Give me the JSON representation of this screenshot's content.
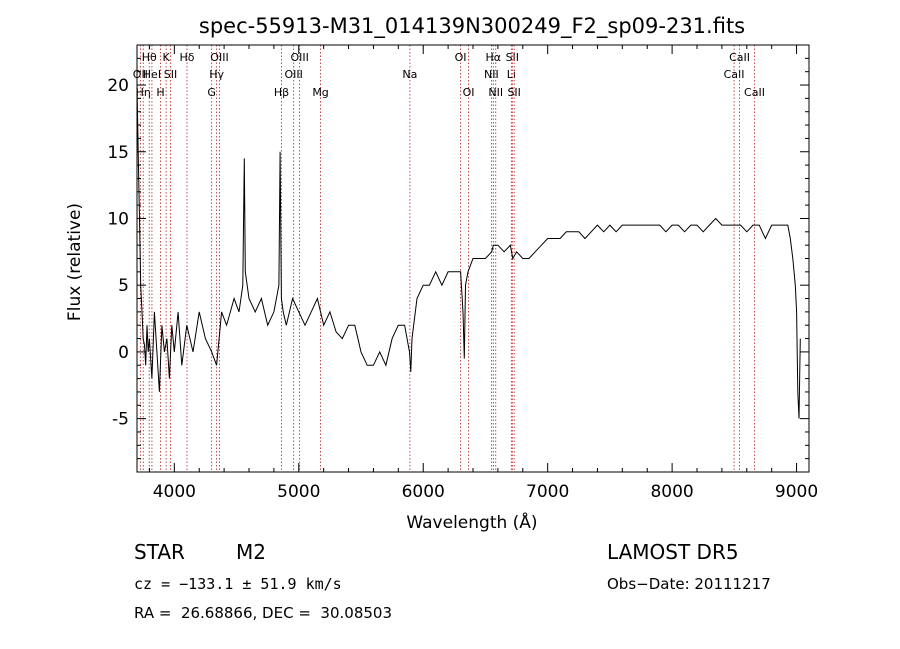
{
  "chart_data": {
    "type": "line",
    "title": "spec-55913-M31_014139N300249_F2_sp09-231.fits",
    "xlabel": "Wavelength (Å)",
    "ylabel": "Flux (relative)",
    "xlim": [
      3700,
      9100
    ],
    "ylim": [
      -9,
      23
    ],
    "x_ticks": [
      4000,
      5000,
      6000,
      7000,
      8000,
      9000
    ],
    "y_ticks": [
      -5,
      0,
      5,
      10,
      15,
      20
    ],
    "grid": false,
    "line_color": "#000000",
    "marker_line_color": "#b22222",
    "series": [
      {
        "x": [
          3700,
          3710,
          3720,
          3730,
          3740,
          3750,
          3760,
          3770,
          3780,
          3790,
          3800,
          3820,
          3840,
          3860,
          3880,
          3900,
          3920,
          3940,
          3960,
          3980,
          4000,
          4030,
          4060,
          4100,
          4150,
          4200,
          4250,
          4300,
          4340,
          4380,
          4420,
          4480,
          4520,
          4550,
          4562,
          4570,
          4600,
          4650,
          4700,
          4750,
          4800,
          4840,
          4850,
          4860,
          4875,
          4900,
          4950,
          5000,
          5050,
          5100,
          5150,
          5200,
          5250,
          5300,
          5350,
          5400,
          5450,
          5500,
          5550,
          5600,
          5650,
          5700,
          5750,
          5800,
          5850,
          5890,
          5900,
          5910,
          5950,
          6000,
          6050,
          6100,
          6150,
          6200,
          6250,
          6300,
          6320,
          6330,
          6340,
          6360,
          6400,
          6450,
          6500,
          6550,
          6563,
          6600,
          6650,
          6700,
          6720,
          6750,
          6800,
          6850,
          6900,
          6950,
          7000,
          7050,
          7100,
          7150,
          7200,
          7250,
          7300,
          7350,
          7400,
          7450,
          7500,
          7550,
          7600,
          7650,
          7700,
          7750,
          7800,
          7850,
          7900,
          7950,
          8000,
          8050,
          8100,
          8150,
          8200,
          8250,
          8300,
          8350,
          8400,
          8450,
          8500,
          8550,
          8600,
          8650,
          8700,
          8750,
          8800,
          8850,
          8900,
          8930,
          8950,
          8970,
          8990,
          9000,
          9010,
          9020,
          9030
        ],
        "y": [
          20,
          15,
          10,
          5,
          3,
          1,
          0.5,
          -1,
          2,
          0,
          1,
          -2,
          3,
          0,
          -3,
          2,
          0,
          1,
          -2,
          2,
          0,
          3,
          -1,
          2,
          0,
          3,
          1,
          0,
          -1,
          3,
          2,
          4,
          3,
          5,
          14.5,
          6,
          4,
          3,
          4,
          2,
          3,
          5,
          15,
          4,
          3,
          2,
          4,
          3,
          2,
          3,
          4,
          2,
          3,
          1.5,
          1,
          2,
          2,
          0,
          -1,
          -1,
          0,
          -1,
          1,
          2,
          2,
          0,
          -1.5,
          1,
          4,
          5,
          5,
          6,
          5,
          6,
          6,
          6,
          3,
          -0.5,
          5,
          6,
          7,
          7,
          7,
          7.5,
          8,
          8,
          7.5,
          8,
          7,
          7.5,
          7,
          7,
          7.5,
          8,
          8.5,
          8.5,
          8.5,
          9,
          9,
          9,
          8.5,
          9,
          9.5,
          9,
          9.5,
          9,
          9.5,
          9.5,
          9.5,
          9.5,
          9.5,
          9.5,
          9.5,
          9,
          9.5,
          9.5,
          9,
          9.5,
          9.5,
          9,
          9.5,
          10,
          9.5,
          9.5,
          9.5,
          9.5,
          9,
          9.5,
          9.5,
          8.5,
          9.5,
          9.5,
          9.5,
          9.5,
          8.5,
          7,
          5,
          3,
          -3,
          -5,
          1
        ]
      }
    ],
    "line_markers": [
      {
        "wl": 3727,
        "label": "OII",
        "row": 2
      },
      {
        "wl": 3750,
        "label": "Hη",
        "row": 3
      },
      {
        "wl": 3798,
        "label": "Hθ",
        "row": 1
      },
      {
        "wl": 3820,
        "label": "HeI",
        "row": 2
      },
      {
        "wl": 3889,
        "label": "H",
        "row": 3
      },
      {
        "wl": 3934,
        "label": "K",
        "row": 1
      },
      {
        "wl": 3969,
        "label": "SII",
        "row": 2
      },
      {
        "wl": 4102,
        "label": "Hδ",
        "row": 1
      },
      {
        "wl": 4300,
        "label": "G",
        "row": 3
      },
      {
        "wl": 4340,
        "label": "Hγ",
        "row": 2
      },
      {
        "wl": 4363,
        "label": "OIII",
        "row": 1
      },
      {
        "wl": 4861,
        "label": "Hβ",
        "row": 3
      },
      {
        "wl": 4959,
        "label": "OIII",
        "row": 2
      },
      {
        "wl": 5007,
        "label": "OIII",
        "row": 1
      },
      {
        "wl": 5175,
        "label": "Mg",
        "row": 3
      },
      {
        "wl": 5893,
        "label": "Na",
        "row": 2
      },
      {
        "wl": 6300,
        "label": "OI",
        "row": 1
      },
      {
        "wl": 6364,
        "label": "OI",
        "row": 3
      },
      {
        "wl": 6548,
        "label": "NII",
        "row": 2
      },
      {
        "wl": 6563,
        "label": "Hα",
        "row": 1
      },
      {
        "wl": 6583,
        "label": "NII",
        "row": 3
      },
      {
        "wl": 6708,
        "label": "Li",
        "row": 2
      },
      {
        "wl": 6716,
        "label": "SII",
        "row": 1
      },
      {
        "wl": 6731,
        "label": "SII",
        "row": 3
      },
      {
        "wl": 8498,
        "label": "CaII",
        "row": 2
      },
      {
        "wl": 8542,
        "label": "CaII",
        "row": 1
      },
      {
        "wl": 8662,
        "label": "CaII",
        "row": 3
      }
    ]
  },
  "info": {
    "class": "STAR",
    "subclass": "M2",
    "survey": "LAMOST DR5",
    "cz": "cz = −133.1 ± 51.9 km/s",
    "obs_date": "Obs−Date: 20111217",
    "radec": "RA =  26.68866, DEC =  30.08503"
  }
}
